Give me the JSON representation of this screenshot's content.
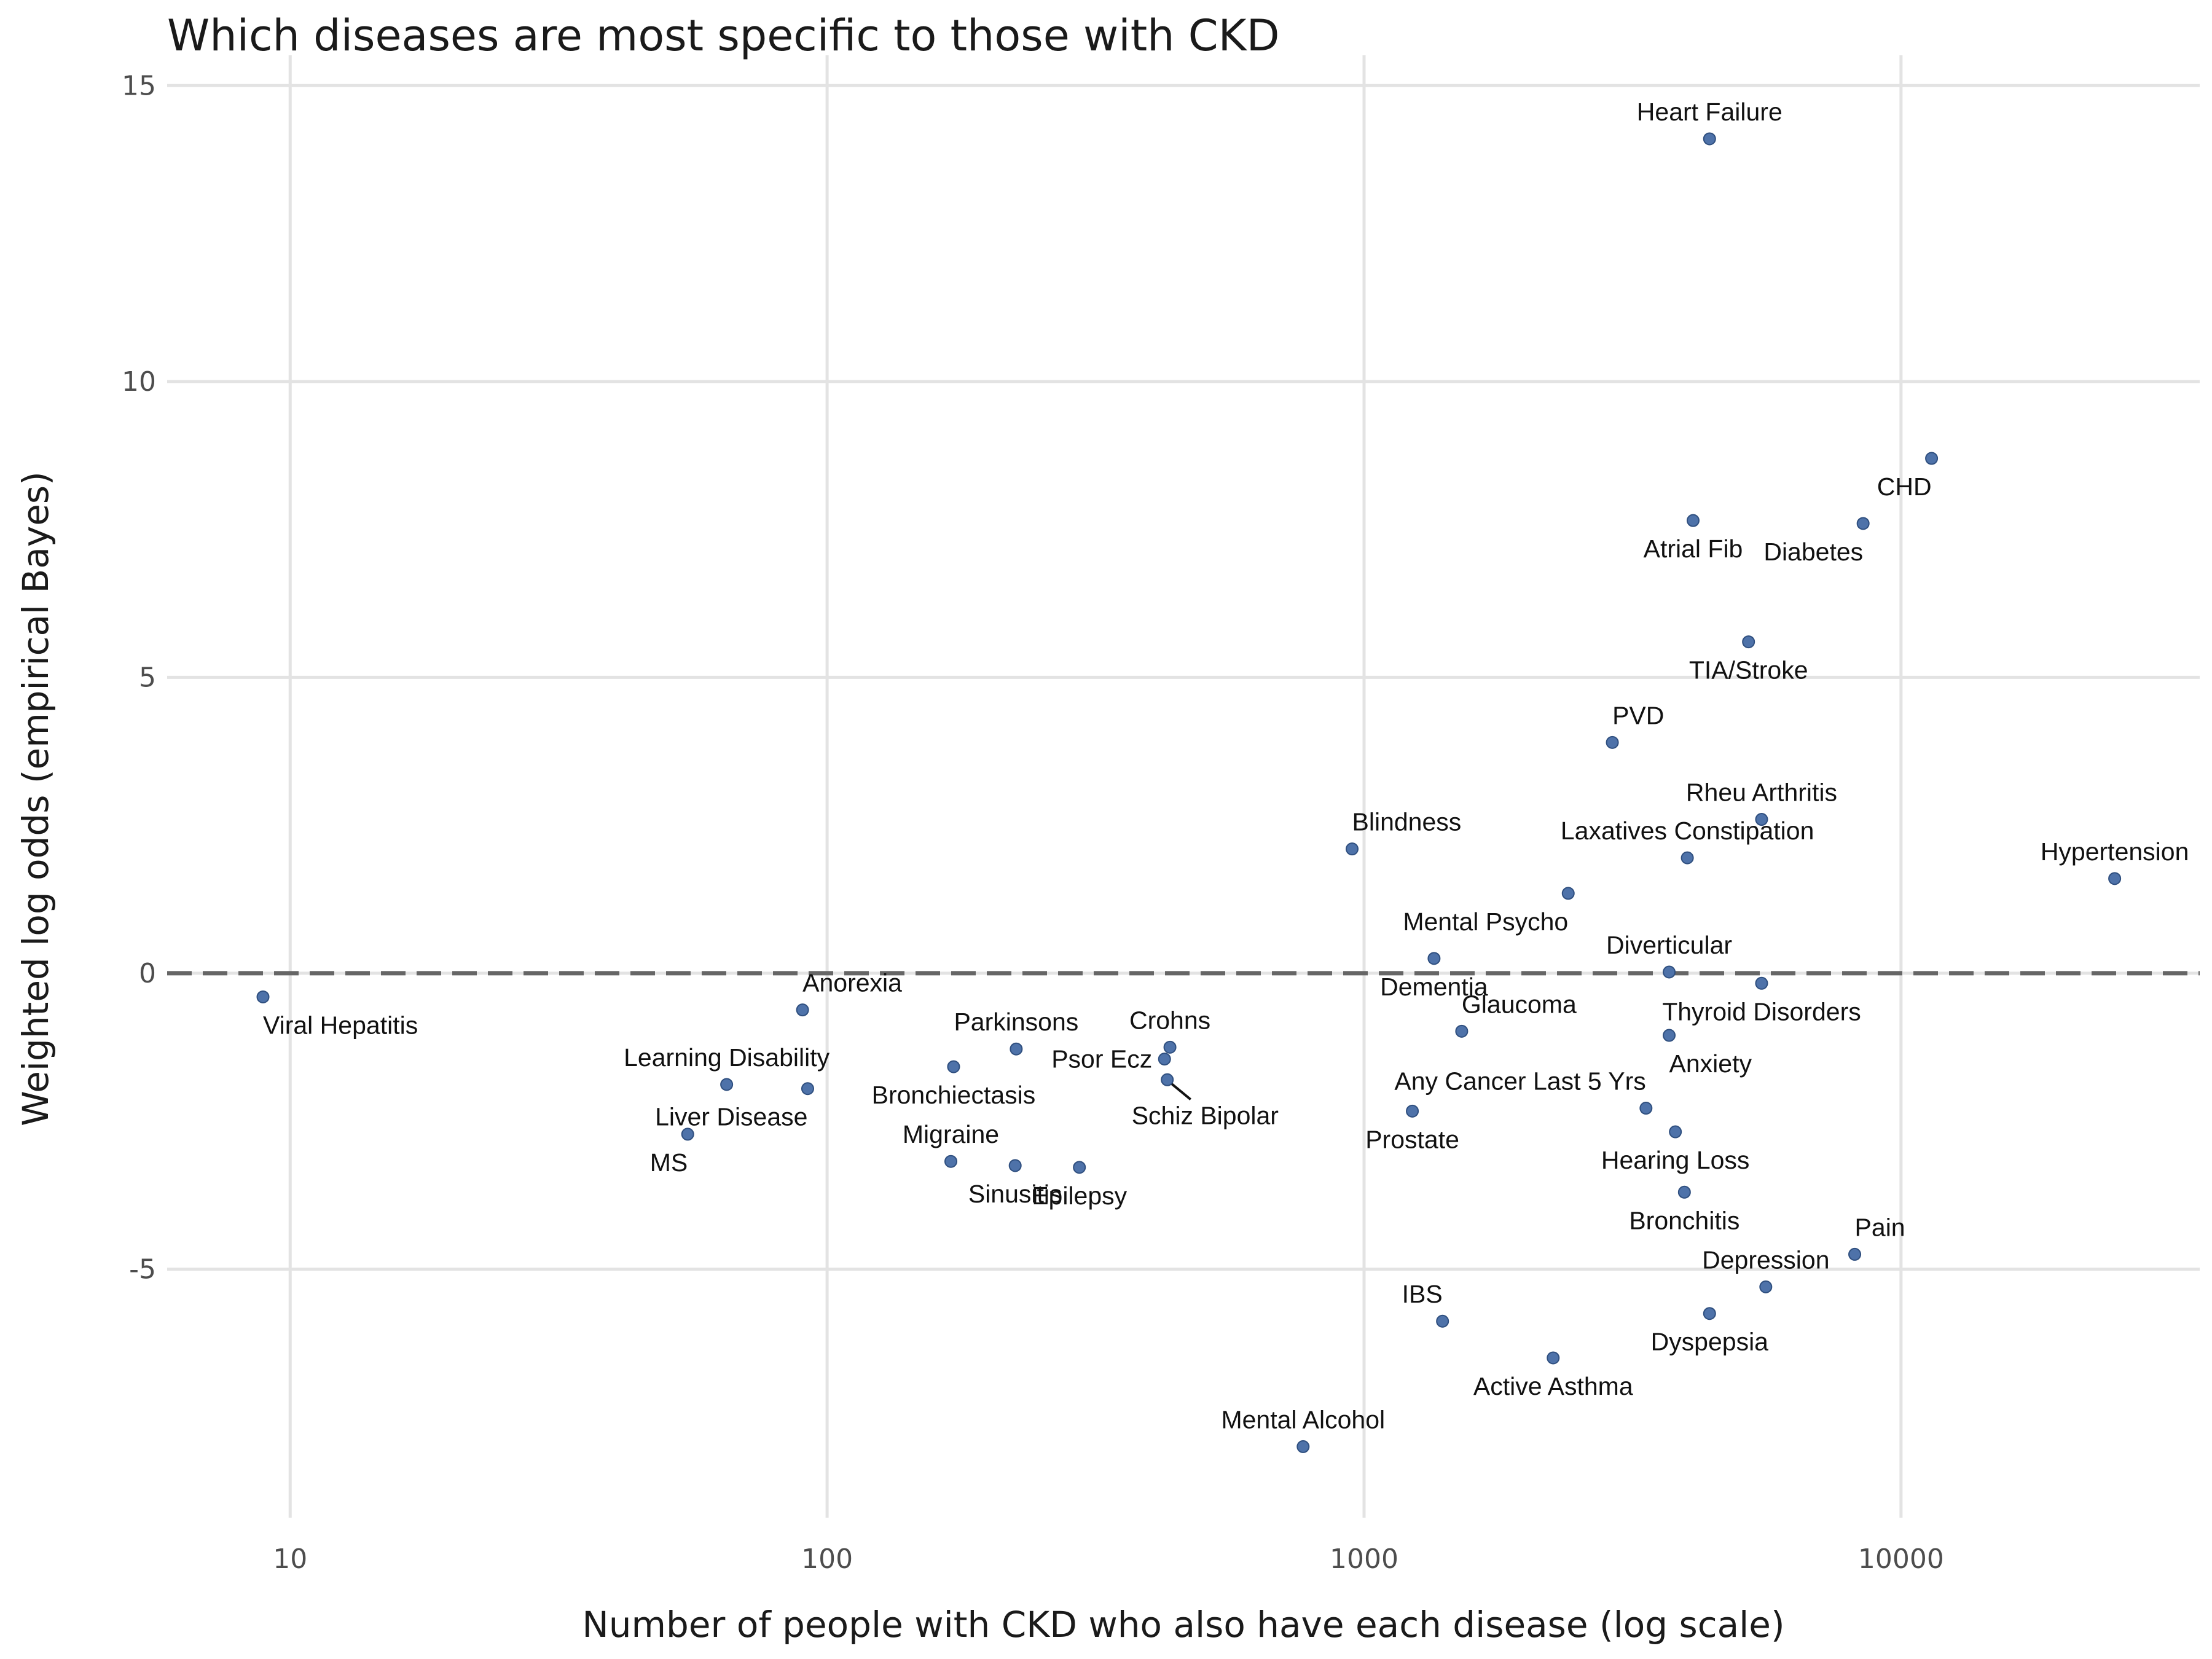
{
  "chart_data": {
    "type": "scatter",
    "title": "Which diseases are most specific to those with CKD",
    "xlabel": "Number of people with CKD who also have each disease (log scale)",
    "ylabel": "Weighted log odds (empirical Bayes)",
    "x_scale": "log10",
    "xlim": [
      5.9,
      36000
    ],
    "ylim": [
      -9.2,
      15.2
    ],
    "x_ticks": [
      10,
      100,
      1000,
      10000
    ],
    "x_tick_labels": [
      "10",
      "100",
      "1000",
      "10000"
    ],
    "y_ticks": [
      -5,
      0,
      5,
      10,
      15
    ],
    "y_tick_labels": [
      "-5",
      "0",
      "5",
      "10",
      "15"
    ],
    "grid": true,
    "reference_line": {
      "y": 0,
      "style": "dashed"
    },
    "point_color": "#4e72a9",
    "points": [
      {
        "label": "Heart Failure",
        "x": 4400,
        "y": 14.1,
        "anchor": "middle",
        "label_pos": "above"
      },
      {
        "label": "CHD",
        "x": 11400,
        "y": 8.7,
        "anchor": "end",
        "label_pos": "below"
      },
      {
        "label": "Diabetes",
        "x": 8500,
        "y": 7.6,
        "anchor": "end",
        "label_pos": "below"
      },
      {
        "label": "Atrial Fib",
        "x": 4100,
        "y": 7.65,
        "anchor": "middle",
        "label_pos": "below"
      },
      {
        "label": "TIA/Stroke",
        "x": 5200,
        "y": 5.6,
        "anchor": "middle",
        "label_pos": "below"
      },
      {
        "label": "PVD",
        "x": 2900,
        "y": 3.9,
        "anchor": "start",
        "label_pos": "above"
      },
      {
        "label": "Rheu Arthritis",
        "x": 5500,
        "y": 2.6,
        "anchor": "middle",
        "label_pos": "above"
      },
      {
        "label": "Laxatives Constipation",
        "x": 4000,
        "y": 1.95,
        "anchor": "middle",
        "label_pos": "above"
      },
      {
        "label": "Hypertension",
        "x": 25000,
        "y": 1.6,
        "anchor": "middle",
        "label_pos": "above"
      },
      {
        "label": "Blindness",
        "x": 950,
        "y": 2.1,
        "anchor": "start",
        "label_pos": "above"
      },
      {
        "label": "Mental Psycho",
        "x": 2400,
        "y": 1.35,
        "anchor": "end",
        "label_pos": "below"
      },
      {
        "label": "Dementia",
        "x": 1350,
        "y": 0.25,
        "anchor": "middle",
        "label_pos": "below"
      },
      {
        "label": "Diverticular",
        "x": 3700,
        "y": 0.02,
        "anchor": "middle",
        "label_pos": "above"
      },
      {
        "label": "Thyroid Disorders",
        "x": 5500,
        "y": -0.17,
        "anchor": "middle",
        "label_pos": "below"
      },
      {
        "label": "Viral Hepatitis",
        "x": 8.9,
        "y": -0.4,
        "anchor": "start",
        "label_pos": "below"
      },
      {
        "label": "Anorexia",
        "x": 90,
        "y": -0.62,
        "anchor": "start",
        "label_pos": "above"
      },
      {
        "label": "Glaucoma",
        "x": 1520,
        "y": -0.98,
        "anchor": "start",
        "label_pos": "above"
      },
      {
        "label": "Anxiety",
        "x": 3700,
        "y": -1.05,
        "anchor": "start",
        "label_pos": "below"
      },
      {
        "label": "Parkinsons",
        "x": 225,
        "y": -1.28,
        "anchor": "middle",
        "label_pos": "above"
      },
      {
        "label": "Crohns",
        "x": 435,
        "y": -1.25,
        "anchor": "middle",
        "label_pos": "above"
      },
      {
        "label": "Psor Ecz",
        "x": 425,
        "y": -1.45,
        "anchor": "end",
        "label_pos": "left"
      },
      {
        "label": "Bronchiectasis",
        "x": 172,
        "y": -1.58,
        "anchor": "middle",
        "label_pos": "below"
      },
      {
        "label": "Schiz Bipolar",
        "x": 430,
        "y": -1.8,
        "anchor": "start",
        "label_pos": "below",
        "leader": true
      },
      {
        "label": "Learning Disability",
        "x": 65,
        "y": -1.88,
        "anchor": "middle",
        "label_pos": "above"
      },
      {
        "label": "Liver Disease",
        "x": 92,
        "y": -1.95,
        "anchor": "end",
        "label_pos": "below"
      },
      {
        "label": "Any Cancer Last 5 Yrs",
        "x": 3350,
        "y": -2.28,
        "anchor": "end",
        "label_pos": "above"
      },
      {
        "label": "Prostate",
        "x": 1230,
        "y": -2.33,
        "anchor": "middle",
        "label_pos": "below"
      },
      {
        "label": "Hearing Loss",
        "x": 3800,
        "y": -2.68,
        "anchor": "middle",
        "label_pos": "below"
      },
      {
        "label": "MS",
        "x": 55,
        "y": -2.72,
        "anchor": "end",
        "label_pos": "below"
      },
      {
        "label": "Migraine",
        "x": 170,
        "y": -3.18,
        "anchor": "middle",
        "label_pos": "above"
      },
      {
        "label": "Sinusitis",
        "x": 224,
        "y": -3.25,
        "anchor": "middle",
        "label_pos": "below"
      },
      {
        "label": "Epilepsy",
        "x": 295,
        "y": -3.28,
        "anchor": "middle",
        "label_pos": "below"
      },
      {
        "label": "Bronchitis",
        "x": 3950,
        "y": -3.7,
        "anchor": "middle",
        "label_pos": "below"
      },
      {
        "label": "Pain",
        "x": 8200,
        "y": -4.75,
        "anchor": "start",
        "label_pos": "above"
      },
      {
        "label": "Depression",
        "x": 5600,
        "y": -5.3,
        "anchor": "middle",
        "label_pos": "above"
      },
      {
        "label": "Dyspepsia",
        "x": 4400,
        "y": -5.75,
        "anchor": "middle",
        "label_pos": "below"
      },
      {
        "label": "IBS",
        "x": 1400,
        "y": -5.88,
        "anchor": "end",
        "label_pos": "above"
      },
      {
        "label": "Active Asthma",
        "x": 2250,
        "y": -6.5,
        "anchor": "middle",
        "label_pos": "below"
      },
      {
        "label": "Mental Alcohol",
        "x": 770,
        "y": -8.0,
        "anchor": "middle",
        "label_pos": "above"
      }
    ]
  }
}
